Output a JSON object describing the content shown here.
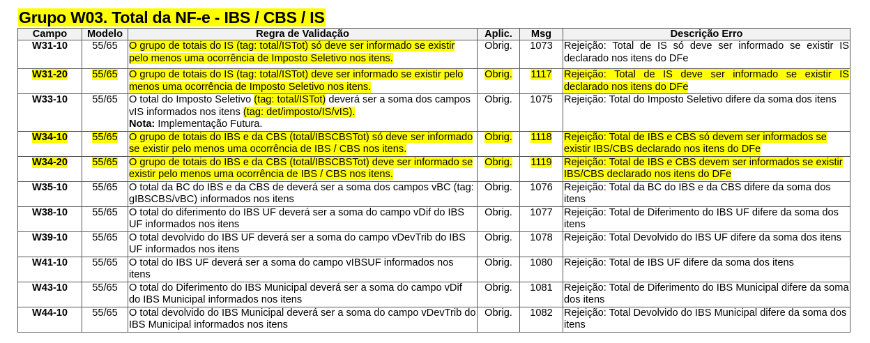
{
  "title": "Grupo W03. Total da NF-e - IBS / CBS / IS",
  "colors": {
    "highlight": "#ffff00"
  },
  "headers": [
    "Campo",
    "Modelo",
    "Regra de Validação",
    "Aplic.",
    "Msg",
    "Descrição Erro"
  ],
  "rows": [
    {
      "campo": "W31-10",
      "modelo": "55/65",
      "regra": [
        {
          "t": "O grupo de totais do IS (tag: total/ISTot) só deve ser informado se existir pelo menos uma ocorrência de Imposto Seletivo nos itens.",
          "hl": true
        }
      ],
      "aplic": "Obrig.",
      "msg": "1073",
      "desc": "Rejeição: Total de IS só deve ser informado se existir IS declarado nos itens do DFe",
      "highlight": false
    },
    {
      "campo": "W31-20",
      "modelo": "55/65",
      "regra": [
        {
          "t": "O grupo de totais do IS (tag: total/ISTot) deve ser informado se existir pelo menos uma ocorrência de Imposto Seletivo nos itens.",
          "hl": true
        }
      ],
      "aplic": "Obrig.",
      "msg": "1117",
      "desc": "Rejeição: Total de IS deve ser informado se existir IS declarado nos itens do DFe",
      "highlight": true
    },
    {
      "campo": "W33-10",
      "modelo": "55/65",
      "regra": [
        {
          "t": "O total do Imposto Seletivo ",
          "hl": false
        },
        {
          "t": "(tag: total/ISTot)",
          "hl": true
        },
        {
          "t": " deverá ser a soma dos campos vIS informados nos itens ",
          "hl": false
        },
        {
          "t": "(tag: det/imposto/IS/vIS).",
          "hl": true
        }
      ],
      "nota_label": "Nota:",
      "nota": " Implementação Futura.",
      "aplic": "Obrig.",
      "msg": "1075",
      "desc": "Rejeição: Total do Imposto Seletivo difere da soma dos itens",
      "highlight": false
    },
    {
      "campo": "W34-10",
      "modelo": "55/65",
      "regra": [
        {
          "t": "O grupo de totais do IBS e da CBS (total/IBSCBSTot) só deve ser informado se existir pelo menos uma ocorrência de IBS / CBS nos itens.",
          "hl": true
        }
      ],
      "aplic": "Obrig.",
      "msg": "1118",
      "desc": "Rejeição: Total de IBS e CBS só devem ser informados se existir IBS/CBS declarado nos itens do DFe",
      "highlight": true
    },
    {
      "campo": "W34-20",
      "modelo": "55/65",
      "regra": [
        {
          "t": "O grupo de totais do IBS e da CBS (total/IBSCBSTot) deve ser informado se existir pelo menos uma ocorrência de IBS / CBS nos itens.",
          "hl": true
        }
      ],
      "aplic": "Obrig.",
      "msg": "1119",
      "desc": "Rejeição: Total de IBS e CBS devem ser informados se existir IBS/CBS declarado nos itens do DFe",
      "highlight": true
    },
    {
      "campo": "W35-10",
      "modelo": "55/65",
      "regra": [
        {
          "t": "O total da BC do IBS e da CBS de deverá ser a soma dos campos vBC (tag: gIBSCBS/vBC) informados nos itens",
          "hl": false
        }
      ],
      "aplic": "Obrig.",
      "msg": "1076",
      "desc": "Rejeição: Total da BC do IBS e da CBS difere da soma dos itens",
      "highlight": false
    },
    {
      "campo": "W38-10",
      "modelo": "55/65",
      "regra": [
        {
          "t": "O total do diferimento do IBS UF deverá ser a soma do campo vDif do IBS UF informados nos itens",
          "hl": false
        }
      ],
      "aplic": "Obrig.",
      "msg": "1077",
      "desc": "Rejeição: Total de Diferimento do IBS UF difere da soma dos itens",
      "highlight": false
    },
    {
      "campo": "W39-10",
      "modelo": "55/65",
      "regra": [
        {
          "t": "O total devolvido do IBS UF deverá ser a soma do campo vDevTrib do IBS UF informados nos itens",
          "hl": false
        }
      ],
      "aplic": "Obrig.",
      "msg": "1078",
      "desc": "Rejeição: Total Devolvido do IBS UF difere da soma dos itens",
      "highlight": false
    },
    {
      "campo": "W41-10",
      "modelo": "55/65",
      "regra": [
        {
          "t": "O total do IBS UF deverá ser a soma do campo vIBSUF informados nos itens",
          "hl": false
        }
      ],
      "aplic": "Obrig.",
      "msg": "1080",
      "desc": "Rejeição: Total de IBS UF difere da soma dos itens",
      "highlight": false
    },
    {
      "campo": "W43-10",
      "modelo": "55/65",
      "regra": [
        {
          "t": "O total do Diferimento do IBS Municipal deverá ser a soma do campo vDif do IBS Municipal informados nos itens",
          "hl": false
        }
      ],
      "aplic": "Obrig.",
      "msg": "1081",
      "desc": "Rejeição: Total de Diferimento do IBS Municipal difere da soma dos itens",
      "highlight": false
    },
    {
      "campo": "W44-10",
      "modelo": "55/65",
      "regra": [
        {
          "t": "O total devolvido do IBS Municipal deverá ser a soma do campo vDevTrib do IBS Municipal informados nos itens",
          "hl": false
        }
      ],
      "aplic": "Obrig.",
      "msg": "1082",
      "desc": "Rejeição: Total Devolvido do IBS Municipal difere da soma dos itens",
      "highlight": false
    }
  ]
}
